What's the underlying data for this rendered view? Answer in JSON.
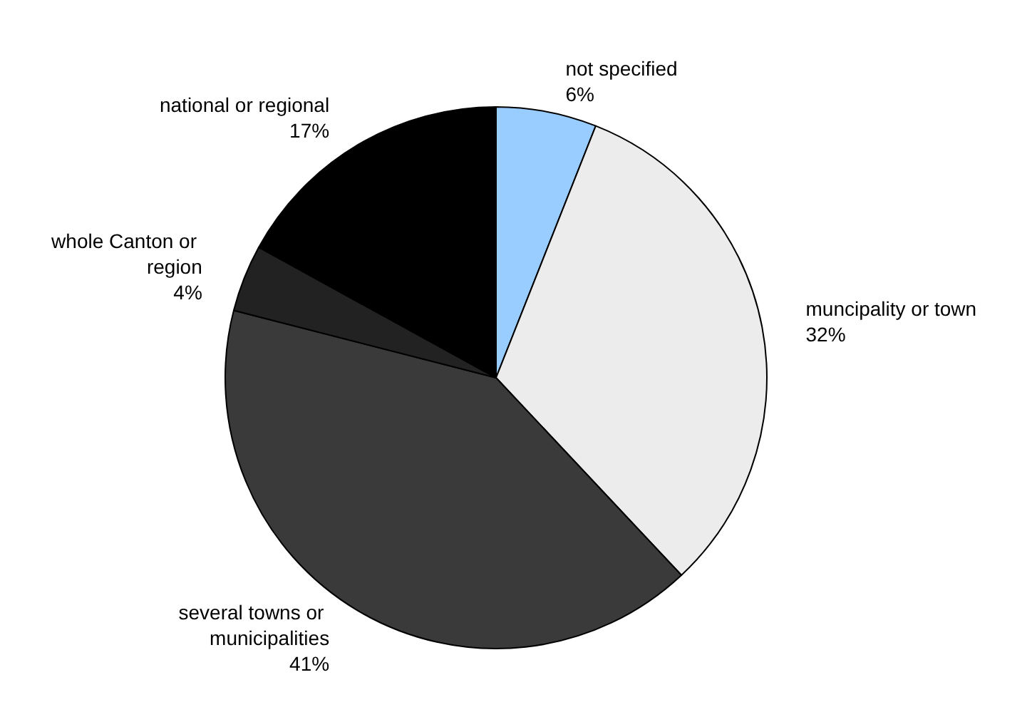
{
  "chart_data": {
    "type": "pie",
    "categories": [
      "not specified",
      "muncipality or town",
      "several towns or municipalities",
      "whole Canton or region",
      "national or regional"
    ],
    "values": [
      6,
      32,
      41,
      4,
      17
    ],
    "value_labels": [
      "6%",
      "32%",
      "41%",
      "4%",
      "17%"
    ],
    "colors": [
      "#99ccff",
      "#ececec",
      "#3a3a3a",
      "#222222",
      "#000000"
    ],
    "legend": false
  }
}
